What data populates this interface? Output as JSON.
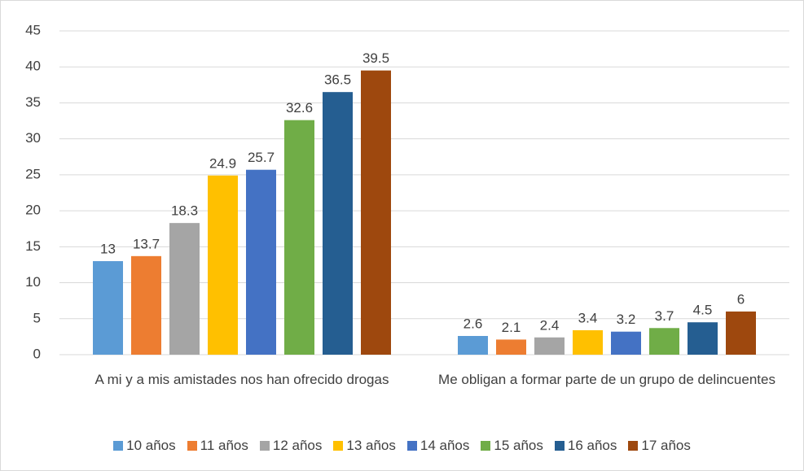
{
  "chart_data": {
    "type": "bar",
    "categories": [
      "A mi y a mis amistades nos han ofrecido drogas",
      "Me obligan a formar parte de un grupo de delincuentes"
    ],
    "series": [
      {
        "name": "10 años",
        "color": "#5b9bd5",
        "values": [
          13,
          2.6
        ]
      },
      {
        "name": "11 años",
        "color": "#ed7d31",
        "values": [
          13.7,
          2.1
        ]
      },
      {
        "name": "12 años",
        "color": "#a5a5a5",
        "values": [
          18.3,
          2.4
        ]
      },
      {
        "name": "13 años",
        "color": "#ffc000",
        "values": [
          24.9,
          3.4
        ]
      },
      {
        "name": "14 años",
        "color": "#4472c4",
        "values": [
          25.7,
          3.2
        ]
      },
      {
        "name": "15 años",
        "color": "#70ad47",
        "values": [
          32.6,
          3.7
        ]
      },
      {
        "name": "16 años",
        "color": "#255e91",
        "values": [
          36.5,
          4.5
        ]
      },
      {
        "name": "17 años",
        "color": "#9e480e",
        "values": [
          39.5,
          6
        ]
      }
    ],
    "ylim": [
      0,
      45
    ],
    "yticks": [
      0,
      5,
      10,
      15,
      20,
      25,
      30,
      35,
      40,
      45
    ],
    "grid": true,
    "legend": "bottom"
  }
}
